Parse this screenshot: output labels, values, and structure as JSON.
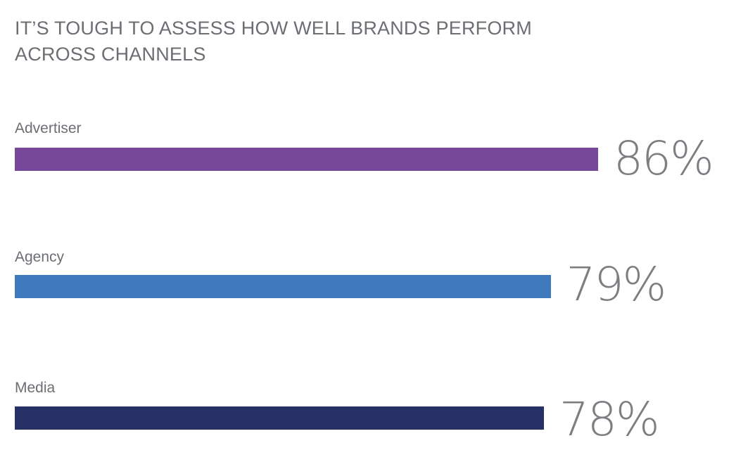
{
  "chart_data": {
    "type": "bar",
    "orientation": "horizontal",
    "title_lines": [
      "IT’S TOUGH TO ASSESS HOW WELL BRANDS PERFORM",
      "ACROSS CHANNELS"
    ],
    "categories": [
      "Advertiser",
      "Agency",
      "Media"
    ],
    "values": [
      86,
      79,
      78
    ],
    "value_labels": [
      "86%",
      "79%",
      "78%"
    ],
    "colors": [
      "#77479a",
      "#3f7abd",
      "#283166"
    ],
    "xlim": [
      0,
      100
    ],
    "grid": false,
    "legend": "none"
  }
}
